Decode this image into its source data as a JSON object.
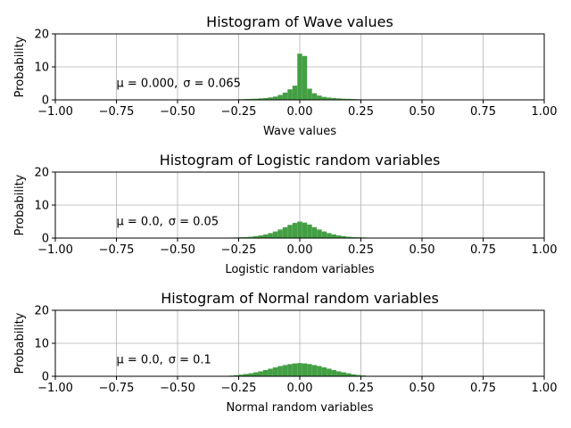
{
  "chart_data": [
    {
      "type": "histogram",
      "title": "Histogram of Wave values",
      "xlabel": "Wave values",
      "ylabel": "Probability",
      "xlim": [
        -1.0,
        1.0
      ],
      "ylim": [
        0,
        20
      ],
      "xticks": [
        "−1.00",
        "−0.75",
        "−0.50",
        "−0.25",
        "0.00",
        "0.25",
        "0.50",
        "0.75",
        "1.00"
      ],
      "yticks": [
        "0",
        "10",
        "20"
      ],
      "grid": true,
      "annotation": {
        "mu": "μ = 0.000,",
        "sigma": "σ = 0.065"
      },
      "bar_color": "#3a9a3a",
      "bin_width": 0.02,
      "bins": [
        {
          "x": -0.26,
          "y": 0.15
        },
        {
          "x": -0.24,
          "y": 0.2
        },
        {
          "x": -0.22,
          "y": 0.25
        },
        {
          "x": -0.2,
          "y": 0.3
        },
        {
          "x": -0.18,
          "y": 0.35
        },
        {
          "x": -0.16,
          "y": 0.45
        },
        {
          "x": -0.14,
          "y": 0.55
        },
        {
          "x": -0.12,
          "y": 0.75
        },
        {
          "x": -0.1,
          "y": 1.0
        },
        {
          "x": -0.08,
          "y": 1.5
        },
        {
          "x": -0.06,
          "y": 2.2
        },
        {
          "x": -0.04,
          "y": 3.2
        },
        {
          "x": -0.02,
          "y": 4.3
        },
        {
          "x": 0.0,
          "y": 14.0
        },
        {
          "x": 0.02,
          "y": 13.3
        },
        {
          "x": 0.04,
          "y": 3.4
        },
        {
          "x": 0.06,
          "y": 2.0
        },
        {
          "x": 0.08,
          "y": 1.3
        },
        {
          "x": 0.1,
          "y": 0.9
        },
        {
          "x": 0.12,
          "y": 0.7
        },
        {
          "x": 0.14,
          "y": 0.55
        },
        {
          "x": 0.16,
          "y": 0.45
        },
        {
          "x": 0.18,
          "y": 0.35
        },
        {
          "x": 0.2,
          "y": 0.3
        },
        {
          "x": 0.22,
          "y": 0.25
        },
        {
          "x": 0.24,
          "y": 0.2
        },
        {
          "x": 0.26,
          "y": 0.15
        }
      ]
    },
    {
      "type": "histogram",
      "title": "Histogram of Logistic random variables",
      "xlabel": "Logistic random variables",
      "ylabel": "Probability",
      "xlim": [
        -1.0,
        1.0
      ],
      "ylim": [
        0,
        20
      ],
      "xticks": [
        "−1.00",
        "−0.75",
        "−0.50",
        "−0.25",
        "0.00",
        "0.25",
        "0.50",
        "0.75",
        "1.00"
      ],
      "yticks": [
        "0",
        "10",
        "20"
      ],
      "grid": true,
      "annotation": {
        "mu": "μ = 0.0,",
        "sigma": "σ = 0.05"
      },
      "bar_color": "#3a9a3a",
      "bin_width": 0.02,
      "bins": [
        {
          "x": -0.3,
          "y": 0.1
        },
        {
          "x": -0.28,
          "y": 0.15
        },
        {
          "x": -0.26,
          "y": 0.2
        },
        {
          "x": -0.24,
          "y": 0.25
        },
        {
          "x": -0.22,
          "y": 0.3
        },
        {
          "x": -0.2,
          "y": 0.4
        },
        {
          "x": -0.18,
          "y": 0.6
        },
        {
          "x": -0.16,
          "y": 0.8
        },
        {
          "x": -0.14,
          "y": 1.1
        },
        {
          "x": -0.12,
          "y": 1.5
        },
        {
          "x": -0.1,
          "y": 2.0
        },
        {
          "x": -0.08,
          "y": 2.6
        },
        {
          "x": -0.06,
          "y": 3.3
        },
        {
          "x": -0.04,
          "y": 4.0
        },
        {
          "x": -0.02,
          "y": 4.6
        },
        {
          "x": 0.0,
          "y": 5.0
        },
        {
          "x": 0.02,
          "y": 4.7
        },
        {
          "x": 0.04,
          "y": 4.1
        },
        {
          "x": 0.06,
          "y": 3.3
        },
        {
          "x": 0.08,
          "y": 2.6
        },
        {
          "x": 0.1,
          "y": 2.0
        },
        {
          "x": 0.12,
          "y": 1.5
        },
        {
          "x": 0.14,
          "y": 1.1
        },
        {
          "x": 0.16,
          "y": 0.8
        },
        {
          "x": 0.18,
          "y": 0.6
        },
        {
          "x": 0.2,
          "y": 0.4
        },
        {
          "x": 0.22,
          "y": 0.3
        },
        {
          "x": 0.24,
          "y": 0.25
        },
        {
          "x": 0.26,
          "y": 0.2
        },
        {
          "x": 0.28,
          "y": 0.1
        }
      ]
    },
    {
      "type": "histogram",
      "title": "Histogram of Normal random variables",
      "xlabel": "Normal random variables",
      "ylabel": "Probability",
      "xlim": [
        -1.0,
        1.0
      ],
      "ylim": [
        0,
        20
      ],
      "xticks": [
        "−1.00",
        "−0.75",
        "−0.50",
        "−0.25",
        "0.00",
        "0.25",
        "0.50",
        "0.75",
        "1.00"
      ],
      "yticks": [
        "0",
        "10",
        "20"
      ],
      "grid": true,
      "annotation": {
        "mu": "μ = 0.0,",
        "sigma": "σ = 0.1"
      },
      "bar_color": "#3a9a3a",
      "bin_width": 0.02,
      "bins": [
        {
          "x": -0.3,
          "y": 0.1
        },
        {
          "x": -0.28,
          "y": 0.2
        },
        {
          "x": -0.26,
          "y": 0.35
        },
        {
          "x": -0.24,
          "y": 0.5
        },
        {
          "x": -0.22,
          "y": 0.7
        },
        {
          "x": -0.2,
          "y": 0.9
        },
        {
          "x": -0.18,
          "y": 1.2
        },
        {
          "x": -0.16,
          "y": 1.5
        },
        {
          "x": -0.14,
          "y": 1.9
        },
        {
          "x": -0.12,
          "y": 2.3
        },
        {
          "x": -0.1,
          "y": 2.7
        },
        {
          "x": -0.08,
          "y": 3.1
        },
        {
          "x": -0.06,
          "y": 3.4
        },
        {
          "x": -0.04,
          "y": 3.7
        },
        {
          "x": -0.02,
          "y": 3.9
        },
        {
          "x": 0.0,
          "y": 4.0
        },
        {
          "x": 0.02,
          "y": 3.9
        },
        {
          "x": 0.04,
          "y": 3.7
        },
        {
          "x": 0.06,
          "y": 3.4
        },
        {
          "x": 0.08,
          "y": 3.1
        },
        {
          "x": 0.1,
          "y": 2.7
        },
        {
          "x": 0.12,
          "y": 2.3
        },
        {
          "x": 0.14,
          "y": 1.9
        },
        {
          "x": 0.16,
          "y": 1.5
        },
        {
          "x": 0.18,
          "y": 1.2
        },
        {
          "x": 0.2,
          "y": 0.9
        },
        {
          "x": 0.22,
          "y": 0.6
        },
        {
          "x": 0.24,
          "y": 0.4
        },
        {
          "x": 0.26,
          "y": 0.25
        },
        {
          "x": 0.28,
          "y": 0.1
        }
      ]
    }
  ]
}
